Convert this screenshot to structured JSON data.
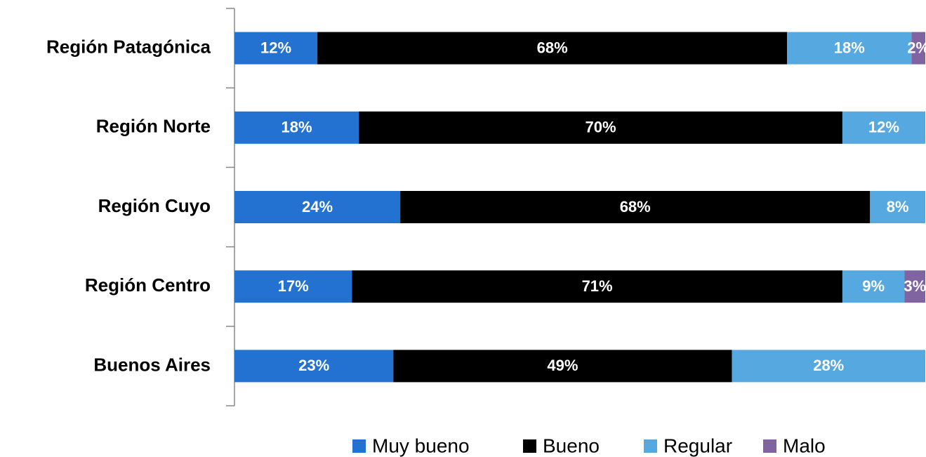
{
  "chart_data": {
    "type": "stacked_bar_horizontal",
    "categories": [
      "Región Patagónica",
      "Región Norte",
      "Región Cuyo",
      "Región Centro",
      "Buenos Aires"
    ],
    "xlim": [
      0,
      100
    ],
    "legend": "bottom",
    "series": [
      {
        "name": "Muy bueno",
        "color": "#2372d1",
        "values": [
          12,
          18,
          24,
          17,
          23
        ],
        "value_labels": [
          "12%",
          "18%",
          "24%",
          "17%",
          "23%"
        ]
      },
      {
        "name": "Bueno",
        "color": "#000000",
        "values": [
          68,
          70,
          68,
          71,
          49
        ],
        "value_labels": [
          "68%",
          "70%",
          "68%",
          "71%",
          "49%"
        ]
      },
      {
        "name": "Regular",
        "color": "#56a8e0",
        "values": [
          18,
          12,
          8,
          9,
          28
        ],
        "value_labels": [
          "18%",
          "12%",
          "8%",
          "9%",
          "28%"
        ]
      },
      {
        "name": "Malo",
        "color": "#8064a2",
        "values": [
          2,
          null,
          null,
          3,
          null
        ],
        "value_labels": [
          "2%",
          null,
          null,
          "3%",
          null
        ]
      }
    ]
  }
}
